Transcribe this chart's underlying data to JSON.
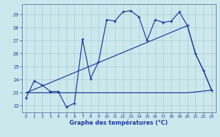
{
  "xlabel": "Graphe des températures (°C)",
  "background_color": "#cde8ec",
  "grid_color": "#aad0d8",
  "line_color": "#1a3a9c",
  "x_ticks": [
    0,
    1,
    2,
    3,
    4,
    5,
    6,
    7,
    8,
    9,
    10,
    11,
    12,
    13,
    14,
    15,
    16,
    17,
    18,
    19,
    20,
    21,
    22,
    23
  ],
  "y_ticks": [
    22,
    23,
    24,
    25,
    26,
    27,
    28,
    29
  ],
  "xlim": [
    -0.5,
    23.5
  ],
  "ylim": [
    21.5,
    29.8
  ],
  "line1_x": [
    0,
    1,
    2,
    3,
    4,
    5,
    6,
    7,
    8,
    9,
    10,
    11,
    12,
    13,
    14,
    15,
    16,
    17,
    18,
    19,
    20,
    21,
    22,
    23
  ],
  "line1_y": [
    22.6,
    23.9,
    23.6,
    23.1,
    23.1,
    21.9,
    22.2,
    27.1,
    24.1,
    25.4,
    28.6,
    28.5,
    29.2,
    29.3,
    28.8,
    27.0,
    28.6,
    28.4,
    28.5,
    29.2,
    28.15,
    26.0,
    24.7,
    23.2
  ],
  "line2_x": [
    0,
    20,
    21,
    22,
    23
  ],
  "line2_y": [
    23.0,
    28.15,
    26.0,
    24.7,
    23.2
  ],
  "line3_x": [
    0,
    20,
    23
  ],
  "line3_y": [
    23.0,
    23.0,
    23.2
  ]
}
